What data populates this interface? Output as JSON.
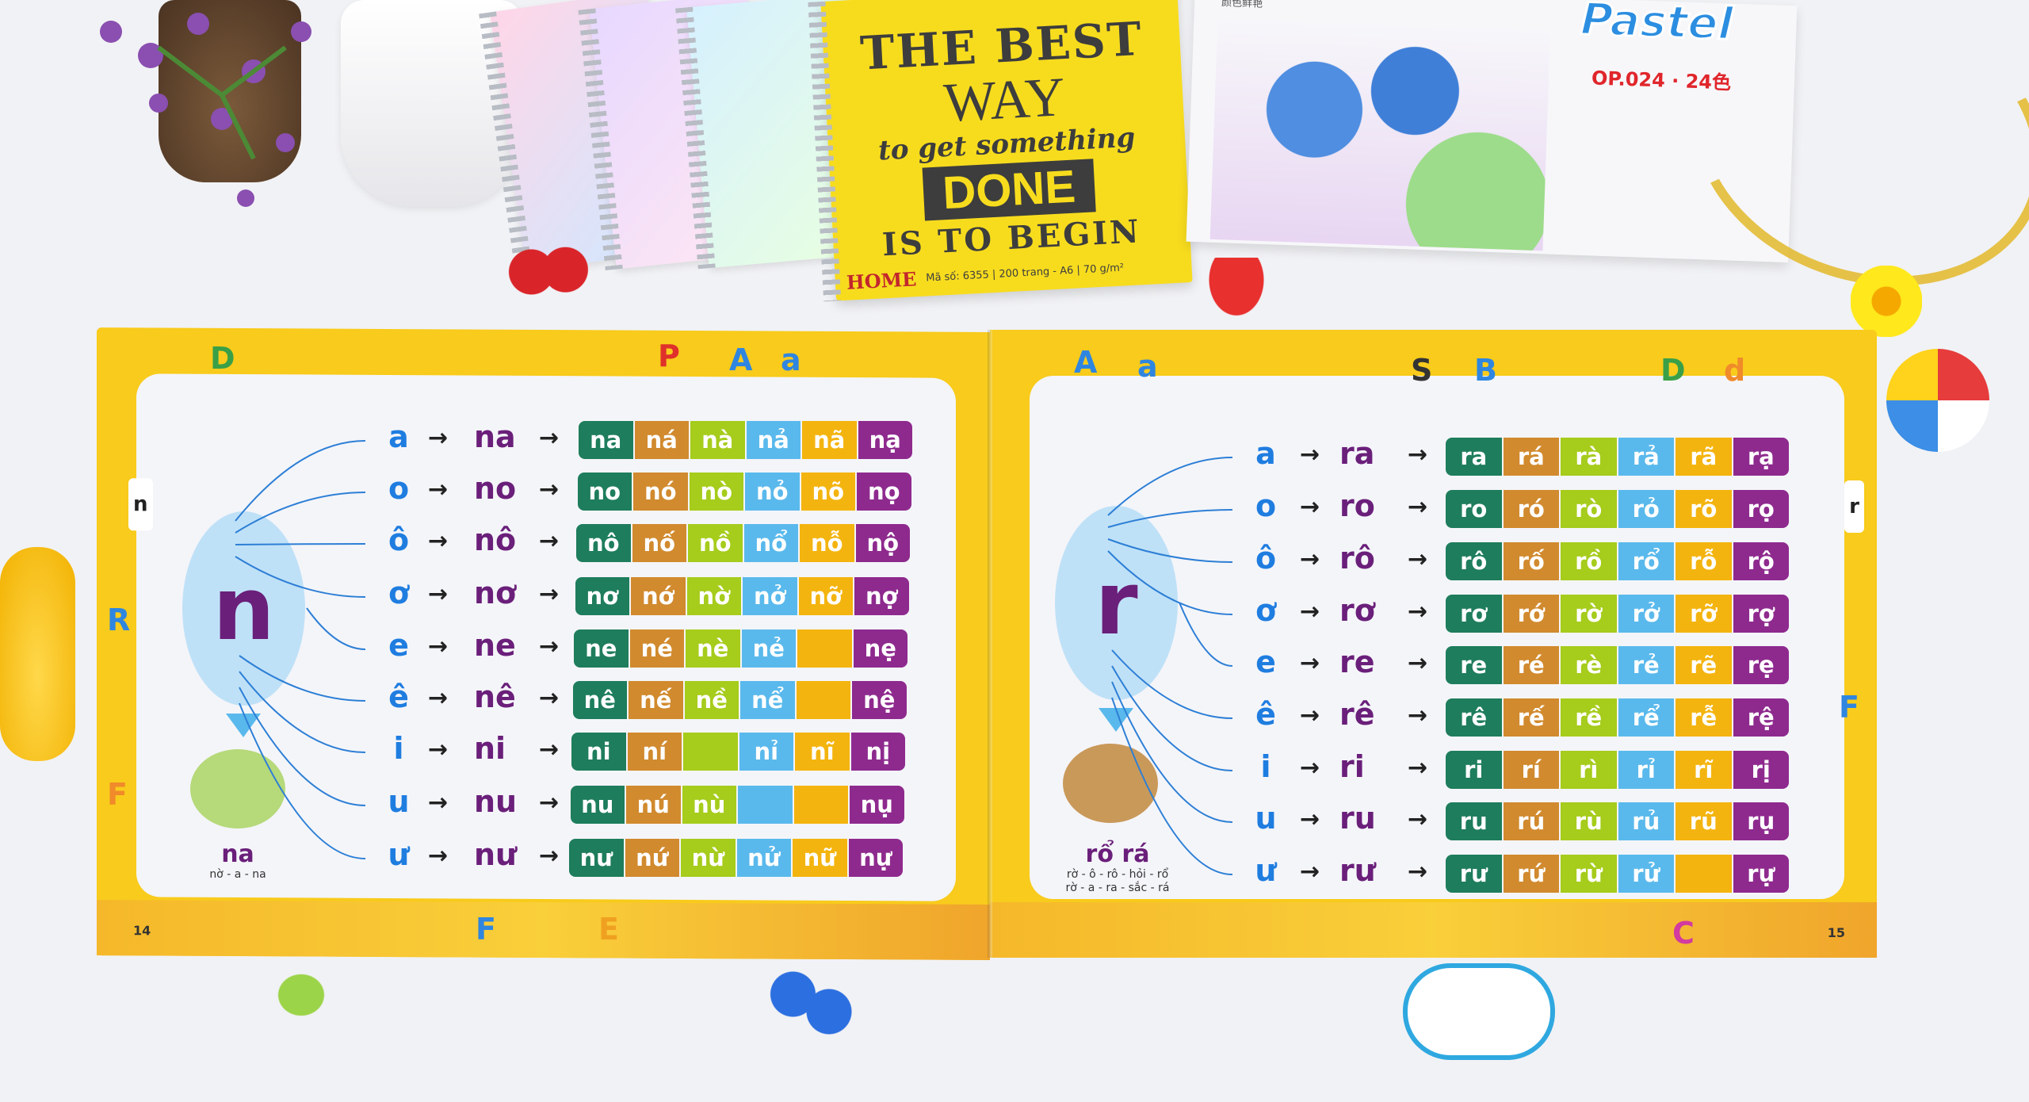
{
  "tone_colors": [
    "#1e7d5c",
    "#d18a2e",
    "#a6cc1c",
    "#5ab9ec",
    "#f4b40f",
    "#8e2a8e"
  ],
  "notebook_cover": {
    "line1": "THE BEST",
    "line2": "WAY",
    "line3": "to get something",
    "line4": "DONE",
    "line5": "IS TO BEGIN",
    "brand": "HOME",
    "spec": "Mã số: 6355 | 200 trang - A6 | 70 g/m²"
  },
  "pastel_box": {
    "brand": "Pastel",
    "code": "OP.024 · 24色",
    "tagline": "颜色鲜艳"
  },
  "left_page": {
    "page_number": "14",
    "side_letter": "n",
    "consonant": "n",
    "border_letters": [
      "D",
      "P",
      "A",
      "a",
      "R",
      "F",
      "E",
      "F"
    ],
    "caption_word": "na",
    "caption_spelling": [
      "nờ - a - na"
    ],
    "rows": [
      {
        "vowel": "a",
        "syllable": "na",
        "tones": [
          "na",
          "ná",
          "nà",
          "nả",
          "nã",
          "nạ"
        ]
      },
      {
        "vowel": "o",
        "syllable": "no",
        "tones": [
          "no",
          "nó",
          "nò",
          "nỏ",
          "nõ",
          "nọ"
        ]
      },
      {
        "vowel": "ô",
        "syllable": "nô",
        "tones": [
          "nô",
          "nố",
          "nồ",
          "nổ",
          "nỗ",
          "nộ"
        ]
      },
      {
        "vowel": "ơ",
        "syllable": "nơ",
        "tones": [
          "nơ",
          "nớ",
          "nờ",
          "nở",
          "nỡ",
          "nợ"
        ]
      },
      {
        "vowel": "e",
        "syllable": "ne",
        "tones": [
          "ne",
          "né",
          "nè",
          "nẻ",
          "",
          "nẹ"
        ]
      },
      {
        "vowel": "ê",
        "syllable": "nê",
        "tones": [
          "nê",
          "nế",
          "nề",
          "nể",
          "",
          "nệ"
        ]
      },
      {
        "vowel": "i",
        "syllable": "ni",
        "tones": [
          "ni",
          "ní",
          "",
          "nỉ",
          "nĩ",
          "nị"
        ]
      },
      {
        "vowel": "u",
        "syllable": "nu",
        "tones": [
          "nu",
          "nú",
          "nù",
          "",
          "",
          "nụ"
        ]
      },
      {
        "vowel": "ư",
        "syllable": "nư",
        "tones": [
          "nư",
          "nứ",
          "nừ",
          "nử",
          "nữ",
          "nự"
        ]
      }
    ]
  },
  "right_page": {
    "page_number": "15",
    "side_letter": "r",
    "consonant": "r",
    "border_letters": [
      "A",
      "a",
      "S",
      "B",
      "D",
      "d",
      "F",
      "C"
    ],
    "caption_word": "rổ rá",
    "caption_spelling": [
      "rờ - ô - rô - hỏi - rổ",
      "rờ - a - ra - sắc - rá"
    ],
    "rows": [
      {
        "vowel": "a",
        "syllable": "ra",
        "tones": [
          "ra",
          "rá",
          "rà",
          "rả",
          "rã",
          "rạ"
        ]
      },
      {
        "vowel": "o",
        "syllable": "ro",
        "tones": [
          "ro",
          "ró",
          "rò",
          "rỏ",
          "rõ",
          "rọ"
        ]
      },
      {
        "vowel": "ô",
        "syllable": "rô",
        "tones": [
          "rô",
          "rố",
          "rồ",
          "rổ",
          "rỗ",
          "rộ"
        ]
      },
      {
        "vowel": "ơ",
        "syllable": "rơ",
        "tones": [
          "rơ",
          "rớ",
          "rờ",
          "rở",
          "rỡ",
          "rợ"
        ]
      },
      {
        "vowel": "e",
        "syllable": "re",
        "tones": [
          "re",
          "ré",
          "rè",
          "rẻ",
          "rẽ",
          "rẹ"
        ]
      },
      {
        "vowel": "ê",
        "syllable": "rê",
        "tones": [
          "rê",
          "rế",
          "rề",
          "rể",
          "rễ",
          "rệ"
        ]
      },
      {
        "vowel": "i",
        "syllable": "ri",
        "tones": [
          "ri",
          "rí",
          "rì",
          "rỉ",
          "rĩ",
          "rị"
        ]
      },
      {
        "vowel": "u",
        "syllable": "ru",
        "tones": [
          "ru",
          "rú",
          "rù",
          "rủ",
          "rũ",
          "rụ"
        ]
      },
      {
        "vowel": "ư",
        "syllable": "rư",
        "tones": [
          "rư",
          "rứ",
          "rừ",
          "rử",
          "",
          "rự"
        ]
      }
    ]
  }
}
